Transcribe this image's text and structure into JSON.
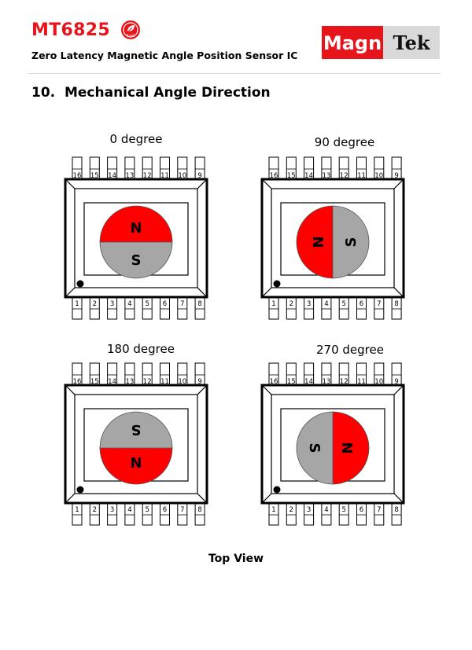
{
  "header": {
    "part_number": "MT6825",
    "subtitle": "Zero Latency Magnetic Angle Position Sensor IC",
    "logo": {
      "part1": "Magn",
      "part2": "Tek",
      "part1_bg": "#e8141b",
      "part2_bg": "#d9d9d9"
    },
    "badge": {
      "text": "RoHS",
      "color": "#e8141b"
    }
  },
  "section": {
    "number": "10.",
    "title": "Mechanical Angle Direction"
  },
  "diagrams": [
    {
      "label": "0 degree",
      "angle": 0
    },
    {
      "label": "90 degree",
      "angle": 90
    },
    {
      "label": "180 degree",
      "angle": 180
    },
    {
      "label": "270 degree",
      "angle": 270
    }
  ],
  "pins": {
    "top": [
      "16",
      "15",
      "14",
      "13",
      "12",
      "11",
      "10",
      "9"
    ],
    "bottom": [
      "1",
      "2",
      "3",
      "4",
      "5",
      "6",
      "7",
      "8"
    ]
  },
  "magnet": {
    "north_label": "N",
    "south_label": "S",
    "north_color": "#ff0000",
    "south_color": "#a6a6a6"
  },
  "caption": "Top View"
}
